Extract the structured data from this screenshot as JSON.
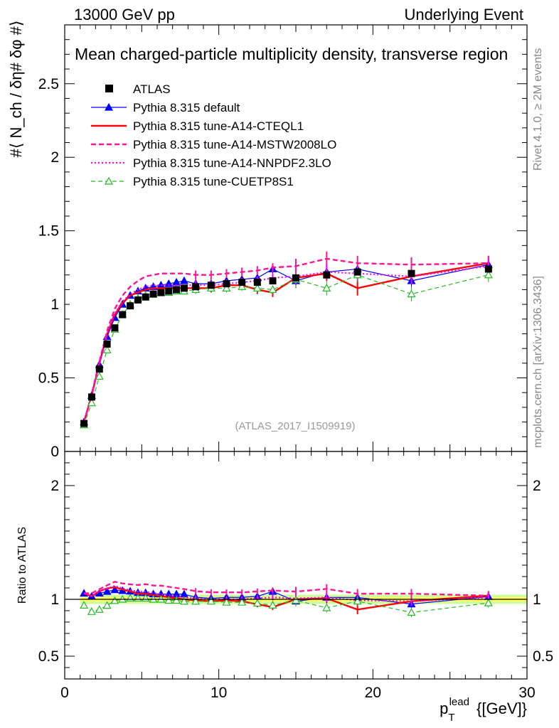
{
  "header": {
    "left": "13000 GeV pp",
    "right": "Underlying Event"
  },
  "side": {
    "rivet": "Rivet 4.1.0, ≥ 2M events",
    "mcplots": "mcplots.cern.ch [arXiv:1306.3436]"
  },
  "colors": {
    "atlas": "#000000",
    "default": "#0000ff",
    "cteql1": "#ff0000",
    "mstw": "#ff1493",
    "nnpdf": "#ff00ff",
    "cuetp8s1": "#22bb22",
    "band_inner": "#ffff66",
    "band_outer": "#ccff99"
  },
  "chart_data": {
    "type": "line",
    "title": "Mean charged-particle multiplicity density, transverse region",
    "analysis_label": "(ATLAS_2017_I1509919)",
    "xlabel": "p_T^lead {[GeV]}",
    "xlabel_main": "p",
    "xlabel_sub": "T",
    "xlabel_sup": "lead",
    "xlabel_unit": "{[GeV]}",
    "ylabel": "#⟨ N_ch / δη# δφ #⟩",
    "xlim": [
      0,
      30
    ],
    "ylim": [
      0,
      2.9
    ],
    "xticks": [
      0,
      10,
      20,
      30
    ],
    "yticks": [
      0.5,
      1,
      1.5,
      2,
      2.5
    ],
    "x": [
      1.25,
      1.75,
      2.25,
      2.75,
      3.25,
      3.75,
      4.25,
      4.75,
      5.25,
      5.75,
      6.25,
      6.75,
      7.25,
      7.75,
      8.5,
      9.5,
      10.5,
      11.5,
      12.5,
      13.5,
      15,
      17,
      19,
      22.5,
      27.5
    ],
    "legend": [
      "ATLAS",
      "Pythia 8.315 default",
      "Pythia 8.315 tune-A14-CTEQL1",
      "Pythia 8.315 tune-A14-MSTW2008LO",
      "Pythia 8.315 tune-A14-NNPDF2.3LO",
      "Pythia 8.315 tune-CUETP8S1"
    ],
    "series": [
      {
        "name": "ATLAS",
        "key": "atlas",
        "style": "marker",
        "values": [
          0.19,
          0.37,
          0.56,
          0.73,
          0.84,
          0.93,
          0.99,
          1.03,
          1.05,
          1.07,
          1.08,
          1.09,
          1.1,
          1.11,
          1.12,
          1.13,
          1.14,
          1.15,
          1.15,
          1.16,
          1.18,
          1.2,
          1.22,
          1.21,
          1.24
        ]
      },
      {
        "name": "Pythia 8.315 default",
        "key": "default",
        "style": "solid-thin",
        "values": [
          0.2,
          0.38,
          0.59,
          0.78,
          0.91,
          1.0,
          1.06,
          1.09,
          1.11,
          1.12,
          1.13,
          1.14,
          1.15,
          1.16,
          1.14,
          1.14,
          1.16,
          1.17,
          1.18,
          1.24,
          1.16,
          1.22,
          1.24,
          1.16,
          1.27
        ]
      },
      {
        "name": "Pythia 8.315 tune-A14-CTEQL1",
        "key": "cteql1",
        "style": "solid",
        "values": [
          0.2,
          0.38,
          0.6,
          0.8,
          0.93,
          1.01,
          1.06,
          1.08,
          1.1,
          1.11,
          1.11,
          1.11,
          1.11,
          1.11,
          1.11,
          1.11,
          1.13,
          1.13,
          1.1,
          1.08,
          1.18,
          1.21,
          1.11,
          1.19,
          1.28
        ]
      },
      {
        "name": "Pythia 8.315 tune-A14-MSTW2008LO",
        "key": "mstw",
        "style": "dashed",
        "values": [
          0.2,
          0.39,
          0.61,
          0.82,
          0.97,
          1.06,
          1.12,
          1.16,
          1.19,
          1.2,
          1.21,
          1.21,
          1.21,
          1.21,
          1.2,
          1.2,
          1.21,
          1.22,
          1.23,
          1.25,
          1.26,
          1.31,
          1.28,
          1.27,
          1.28
        ]
      },
      {
        "name": "Pythia 8.315 tune-A14-NNPDF2.3LO",
        "key": "nnpdf",
        "style": "dotted",
        "values": [
          0.2,
          0.38,
          0.6,
          0.8,
          0.94,
          1.02,
          1.07,
          1.1,
          1.12,
          1.13,
          1.13,
          1.13,
          1.13,
          1.13,
          1.13,
          1.13,
          1.14,
          1.15,
          1.16,
          1.18,
          1.19,
          1.22,
          1.21,
          1.19,
          1.26
        ]
      },
      {
        "name": "Pythia 8.315 tune-CUETP8S1",
        "key": "cuetp8s1",
        "style": "dashed-thin",
        "values": [
          0.18,
          0.33,
          0.51,
          0.69,
          0.83,
          0.93,
          1.0,
          1.04,
          1.06,
          1.07,
          1.08,
          1.08,
          1.09,
          1.09,
          1.1,
          1.11,
          1.11,
          1.12,
          1.11,
          1.1,
          1.17,
          1.11,
          1.2,
          1.07,
          1.2
        ]
      }
    ],
    "ratio": {
      "ylabel": "Ratio to ATLAS",
      "ylim": [
        0.3,
        2.3
      ],
      "yticks": [
        0.5,
        1,
        2
      ],
      "ytick_labels": [
        "0.5",
        "1",
        "2"
      ],
      "band_inner": 0.02,
      "band_outer": 0.04
    }
  }
}
